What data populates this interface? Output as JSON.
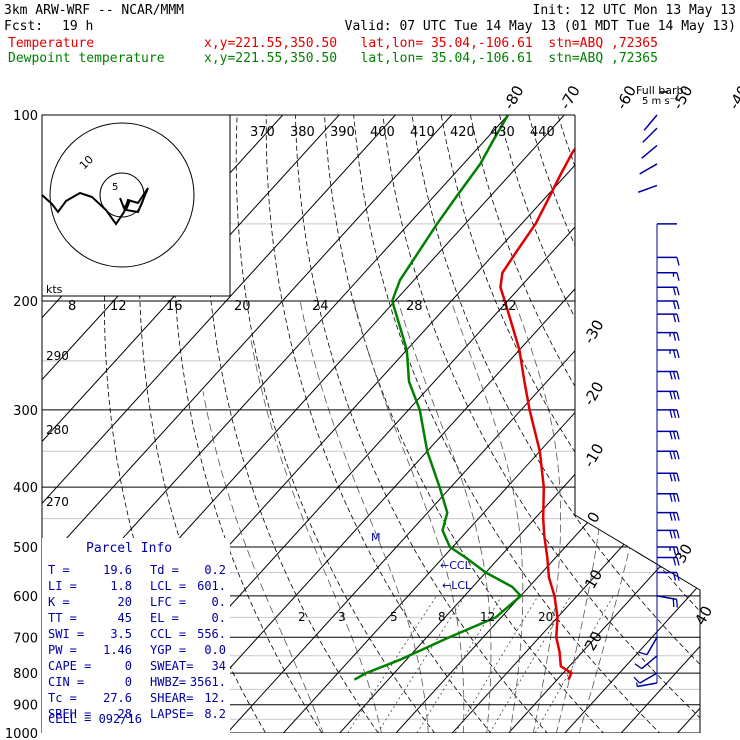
{
  "header": {
    "model": "3km ARW-WRF -- NCAR/MMM",
    "init": "Init: 12 UTC Mon 13 May 13",
    "fcst_label": "Fcst:",
    "fcst_value": "19 h",
    "valid": "Valid: 07 UTC Tue 14 May 13 (01 MDT Tue 14 May 13)",
    "line_temp_name": "Temperature",
    "line_temp_info": "x,y=221.55,350.50   lat,lon= 35.04,-106.61  stn=ABQ ,72365",
    "line_dew_name": "Dewpoint temperature",
    "line_dew_info": "x,y=221.55,350.50   lat,lon= 35.04,-106.61  stn=ABQ ,72365"
  },
  "colors": {
    "temperature": "#e00000",
    "dewpoint": "#008000",
    "wind": "#0000a0",
    "isobar": "#000000"
  },
  "chart_data": {
    "type": "line",
    "yscale": "log-pressure",
    "ylabel": "",
    "pressure_levels": [
      100,
      200,
      300,
      400,
      500,
      600,
      700,
      800,
      900,
      1000
    ],
    "minor_pressure_levels": [
      150,
      250,
      350,
      450,
      550,
      650,
      750,
      850,
      950
    ],
    "isotherm_labels": [
      -80,
      -70,
      -60,
      -50,
      -40,
      -30,
      -20,
      -10,
      0,
      10,
      20,
      30,
      40
    ],
    "theta_labels": [
      370,
      380,
      390,
      400,
      410,
      420,
      430,
      440
    ],
    "theta_side_labels": [
      290,
      280,
      270
    ],
    "theta_e_labels": [
      8,
      12,
      16,
      20,
      24,
      28,
      32
    ],
    "mixing_ratio_labels": [
      2,
      3,
      5,
      8,
      12,
      20
    ],
    "series": [
      {
        "name": "Temperature",
        "points": [
          [
            790,
            21
          ],
          [
            805,
            20
          ],
          [
            830,
            16
          ],
          [
            880,
            14
          ],
          [
            1000,
            0
          ]
        ]
      }
    ],
    "temperature": [
      [
        820,
        22.0
      ],
      [
        800,
        21.5
      ],
      [
        780,
        18.5
      ],
      [
        740,
        16.0
      ],
      [
        700,
        13.0
      ],
      [
        650,
        10.0
      ],
      [
        600,
        6.0
      ],
      [
        560,
        2.0
      ],
      [
        520,
        -1.5
      ],
      [
        480,
        -5.5
      ],
      [
        450,
        -8.5
      ],
      [
        400,
        -13.5
      ],
      [
        350,
        -20.0
      ],
      [
        300,
        -28.5
      ],
      [
        270,
        -34.0
      ],
      [
        240,
        -40.0
      ],
      [
        220,
        -45.0
      ],
      [
        200,
        -50.5
      ],
      [
        190,
        -53.5
      ],
      [
        180,
        -55.5
      ],
      [
        165,
        -56.5
      ],
      [
        150,
        -57.5
      ],
      [
        135,
        -59.5
      ],
      [
        125,
        -61.0
      ],
      [
        115,
        -62.5
      ],
      [
        100,
        -63.5
      ]
    ],
    "dewpoint": [
      [
        820,
        -16.0
      ],
      [
        800,
        -15.0
      ],
      [
        760,
        -11.0
      ],
      [
        700,
        -6.0
      ],
      [
        650,
        -1.0
      ],
      [
        600,
        0.0
      ],
      [
        580,
        -3.0
      ],
      [
        550,
        -10.0
      ],
      [
        520,
        -16.0
      ],
      [
        500,
        -20.5
      ],
      [
        470,
        -24.5
      ],
      [
        440,
        -26.5
      ],
      [
        400,
        -32.0
      ],
      [
        350,
        -40.0
      ],
      [
        300,
        -48.0
      ],
      [
        270,
        -54.5
      ],
      [
        240,
        -60.0
      ],
      [
        220,
        -65.0
      ],
      [
        200,
        -70.5
      ],
      [
        185,
        -72.5
      ],
      [
        170,
        -73.5
      ],
      [
        150,
        -75.0
      ],
      [
        135,
        -76.0
      ],
      [
        120,
        -77.0
      ],
      [
        110,
        -78.5
      ],
      [
        100,
        -80.0
      ]
    ],
    "annotations": [
      "M",
      "CCL",
      "LCL"
    ],
    "wind_barbs_label": "Full barb:",
    "wind_barbs_unit": "5 m s⁻¹",
    "wind_barbs": [
      {
        "p": 100,
        "spd": 2,
        "dir": 40
      },
      {
        "p": 105,
        "spd": 2,
        "dir": 45
      },
      {
        "p": 112,
        "spd": 2,
        "dir": 50
      },
      {
        "p": 120,
        "spd": 2,
        "dir": 60
      },
      {
        "p": 130,
        "spd": 2,
        "dir": 70
      },
      {
        "p": 150,
        "spd": 1,
        "dir": 270
      },
      {
        "p": 170,
        "spd": 5,
        "dir": 270
      },
      {
        "p": 180,
        "spd": 8,
        "dir": 270
      },
      {
        "p": 190,
        "spd": 10,
        "dir": 270
      },
      {
        "p": 200,
        "spd": 12,
        "dir": 270
      },
      {
        "p": 210,
        "spd": 12,
        "dir": 270
      },
      {
        "p": 225,
        "spd": 14,
        "dir": 270
      },
      {
        "p": 240,
        "spd": 14,
        "dir": 270
      },
      {
        "p": 260,
        "spd": 16,
        "dir": 270
      },
      {
        "p": 280,
        "spd": 16,
        "dir": 270
      },
      {
        "p": 300,
        "spd": 16,
        "dir": 270
      },
      {
        "p": 325,
        "spd": 16,
        "dir": 270
      },
      {
        "p": 350,
        "spd": 16,
        "dir": 270
      },
      {
        "p": 380,
        "spd": 16,
        "dir": 270
      },
      {
        "p": 410,
        "spd": 16,
        "dir": 270
      },
      {
        "p": 440,
        "spd": 16,
        "dir": 270
      },
      {
        "p": 470,
        "spd": 16,
        "dir": 270
      },
      {
        "p": 500,
        "spd": 14,
        "dir": 270
      },
      {
        "p": 520,
        "spd": 12,
        "dir": 270
      },
      {
        "p": 550,
        "spd": 10,
        "dir": 270
      },
      {
        "p": 600,
        "spd": 10,
        "dir": 280
      },
      {
        "p": 700,
        "spd": 5,
        "dir": 30
      },
      {
        "p": 750,
        "spd": 5,
        "dir": 50
      },
      {
        "p": 800,
        "spd": 5,
        "dir": 60
      },
      {
        "p": 830,
        "spd": 4,
        "dir": 80
      }
    ]
  },
  "hodograph": {
    "units": "kts",
    "ring_labels": [
      "5",
      "10"
    ]
  },
  "parcel_info": {
    "title": "Parcel Info",
    "rows": [
      [
        "T   =",
        "19.6",
        "Td  =",
        "0.2"
      ],
      [
        "LI  =",
        "1.8",
        "LCL =",
        "601."
      ],
      [
        "K   =",
        "20",
        "LFC =",
        "0."
      ],
      [
        "TT  =",
        "45",
        "EL  =",
        "0."
      ],
      [
        "SWI =",
        "3.5",
        "CCL =",
        "556."
      ],
      [
        "PW  =",
        "1.46",
        "YGP =",
        "0.0"
      ],
      [
        "CAPE =",
        "0",
        "SWEAT=",
        "34"
      ],
      [
        "CIN =",
        "0",
        "HWBZ=",
        "3561."
      ],
      [
        "Tc  =",
        "27.6",
        "SHEAR=",
        "12."
      ],
      [
        "SREH =",
        "28",
        "LAPSE=",
        "8.2"
      ]
    ],
    "cell_label": "CELL =",
    "cell_value": "092/16"
  }
}
